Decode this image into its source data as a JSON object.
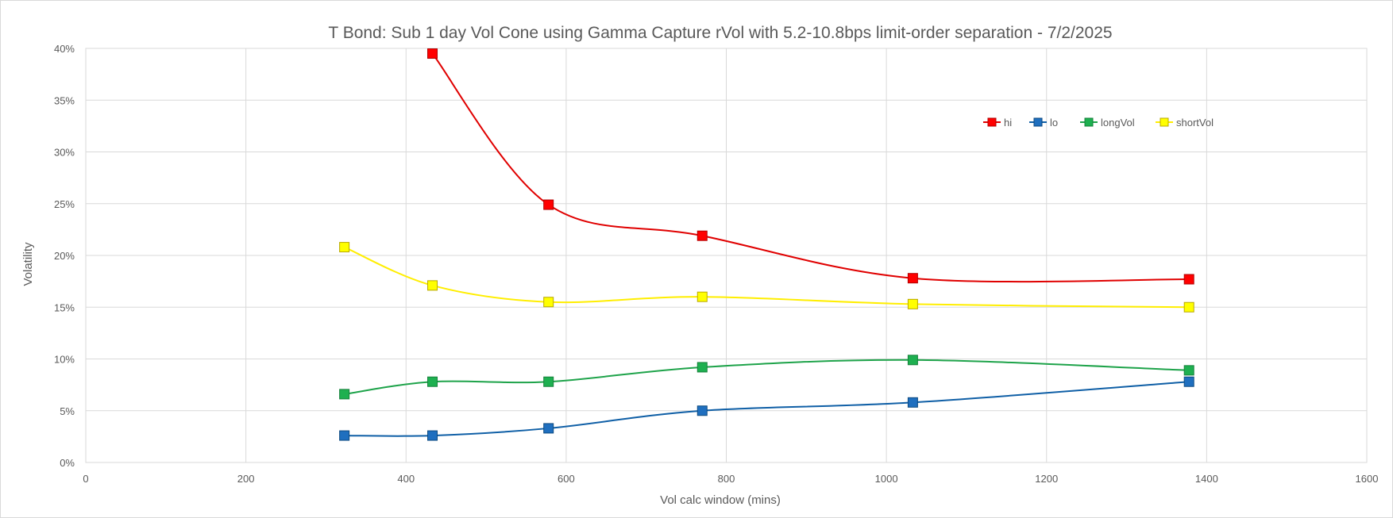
{
  "chart_data": {
    "type": "line",
    "title": "T Bond: Sub 1 day Vol Cone using Gamma Capture rVol with 5.2-10.8bps limit-order separation - 7/2/2025",
    "xlabel": "Vol calc window (mins)",
    "ylabel": "Volatility",
    "xlim": [
      0,
      1600
    ],
    "ylim": [
      0,
      0.4
    ],
    "xticks": [
      0,
      200,
      400,
      600,
      800,
      1000,
      1200,
      1400,
      1600
    ],
    "xtick_labels": [
      "0",
      "200",
      "400",
      "600",
      "800",
      "1000",
      "1200",
      "1400",
      "1600"
    ],
    "yticks": [
      0,
      0.05,
      0.1,
      0.15,
      0.2,
      0.25,
      0.3,
      0.35,
      0.4
    ],
    "ytick_labels": [
      "0%",
      "5%",
      "10%",
      "15%",
      "20%",
      "25%",
      "30%",
      "35%",
      "40%"
    ],
    "grid": true,
    "smooth": true,
    "legend_position": "top-right",
    "x": [
      323,
      433,
      578,
      770,
      1033,
      1378
    ],
    "series": [
      {
        "name": "hi",
        "color": "#e00000",
        "marker": "square",
        "marker_fill": "#ff0000",
        "marker_edge": "#b00000",
        "values": [
          null,
          0.395,
          0.249,
          0.219,
          0.178,
          0.177
        ]
      },
      {
        "name": "lo",
        "color": "#0f5fa6",
        "marker": "square",
        "marker_fill": "#1f6fbf",
        "marker_edge": "#0d4a80",
        "values": [
          0.026,
          0.026,
          0.033,
          0.05,
          0.058,
          0.078
        ]
      },
      {
        "name": "longVol",
        "color": "#1ea34a",
        "marker": "square",
        "marker_fill": "#1eb050",
        "marker_edge": "#15803a",
        "values": [
          0.066,
          0.078,
          0.078,
          0.092,
          0.099,
          0.089
        ]
      },
      {
        "name": "shortVol",
        "color": "#ffee00",
        "marker": "square",
        "marker_fill": "#ffff00",
        "marker_edge": "#b8a800",
        "values": [
          0.208,
          0.171,
          0.155,
          0.16,
          0.153,
          0.15
        ]
      }
    ]
  }
}
